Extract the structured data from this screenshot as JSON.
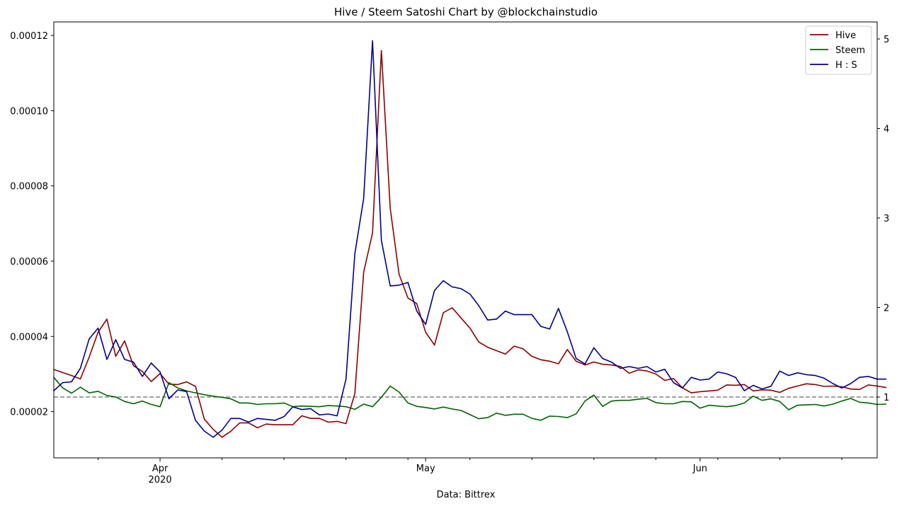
{
  "chart_data": {
    "type": "line",
    "title": "Hive / Steem Satoshi Chart by @blockchainstudio",
    "xlabel": "Data: Bittrex",
    "x_start": "2020-03-20",
    "x_end": "2020-06-21",
    "x_ticks": [
      {
        "date": "2020-04-01",
        "label": "Apr",
        "sublabel": "2020"
      },
      {
        "date": "2020-05-01",
        "label": "May",
        "sublabel": ""
      },
      {
        "date": "2020-06-01",
        "label": "Jun",
        "sublabel": ""
      }
    ],
    "y_left": {
      "lim": [
        7.7e-06,
        0.0001236
      ],
      "ticks": [
        "0.00002",
        "0.00004",
        "0.00006",
        "0.00008",
        "0.00010",
        "0.00012"
      ]
    },
    "y_right": {
      "lim": [
        0.32,
        5.19
      ],
      "ticks": [
        "1",
        "2",
        "3",
        "4",
        "5"
      ]
    },
    "reference_line": {
      "axis": "right",
      "value": 1.0,
      "style": "dashed",
      "color": "#808080"
    },
    "legend": {
      "position": "top-right"
    },
    "series": [
      {
        "name": "Hive",
        "axis": "left",
        "color": "#8b0000",
        "values": [
          3.12e-05,
          3.04e-05,
          2.96e-05,
          2.87e-05,
          3.45e-05,
          4.11e-05,
          4.46e-05,
          3.47e-05,
          3.88e-05,
          3.22e-05,
          3.07e-05,
          2.8e-05,
          3.01e-05,
          2.73e-05,
          2.72e-05,
          2.79e-05,
          2.67e-05,
          1.8e-05,
          1.53e-05,
          1.32e-05,
          1.48e-05,
          1.7e-05,
          1.7e-05,
          1.57e-05,
          1.67e-05,
          1.65e-05,
          1.65e-05,
          1.65e-05,
          1.89e-05,
          1.82e-05,
          1.82e-05,
          1.72e-05,
          1.74e-05,
          1.68e-05,
          2.48e-05,
          5.71e-05,
          6.75e-05,
          0.000116,
          7.4e-05,
          5.65e-05,
          5.02e-05,
          4.87e-05,
          4.11e-05,
          3.77e-05,
          4.63e-05,
          4.76e-05,
          4.49e-05,
          4.22e-05,
          3.85e-05,
          3.71e-05,
          3.62e-05,
          3.53e-05,
          3.74e-05,
          3.67e-05,
          3.47e-05,
          3.38e-05,
          3.34e-05,
          3.27e-05,
          3.65e-05,
          3.34e-05,
          3.24e-05,
          3.32e-05,
          3.26e-05,
          3.24e-05,
          3.2e-05,
          3.02e-05,
          3.11e-05,
          3.08e-05,
          3e-05,
          2.83e-05,
          2.88e-05,
          2.63e-05,
          2.5e-05,
          2.53e-05,
          2.55e-05,
          2.57e-05,
          2.71e-05,
          2.7e-05,
          2.72e-05,
          2.55e-05,
          2.58e-05,
          2.57e-05,
          2.51e-05,
          2.62e-05,
          2.68e-05,
          2.74e-05,
          2.72e-05,
          2.67e-05,
          2.68e-05,
          2.66e-05,
          2.6e-05,
          2.59e-05,
          2.71e-05,
          2.68e-05,
          2.64e-05
        ]
      },
      {
        "name": "Steem",
        "axis": "left",
        "color": "#006400",
        "values": [
          2.91e-05,
          2.63e-05,
          2.49e-05,
          2.65e-05,
          2.5e-05,
          2.54e-05,
          2.43e-05,
          2.39e-05,
          2.27e-05,
          2.21e-05,
          2.28e-05,
          2.19e-05,
          2.13e-05,
          2.77e-05,
          2.63e-05,
          2.55e-05,
          2.5e-05,
          2.45e-05,
          2.41e-05,
          2.38e-05,
          2.34e-05,
          2.23e-05,
          2.23e-05,
          2.19e-05,
          2.21e-05,
          2.21e-05,
          2.23e-05,
          2.13e-05,
          2.15e-05,
          2.14e-05,
          2.13e-05,
          2.16e-05,
          2.15e-05,
          2.13e-05,
          2.06e-05,
          2.2e-05,
          2.13e-05,
          2.38e-05,
          2.68e-05,
          2.52e-05,
          2.23e-05,
          2.14e-05,
          2.11e-05,
          2.07e-05,
          2.12e-05,
          2.07e-05,
          2.03e-05,
          1.92e-05,
          1.81e-05,
          1.84e-05,
          1.96e-05,
          1.9e-05,
          1.93e-05,
          1.93e-05,
          1.82e-05,
          1.77e-05,
          1.88e-05,
          1.87e-05,
          1.84e-05,
          1.94e-05,
          2.28e-05,
          2.44e-05,
          2.14e-05,
          2.28e-05,
          2.3e-05,
          2.3e-05,
          2.33e-05,
          2.35e-05,
          2.24e-05,
          2.21e-05,
          2.21e-05,
          2.27e-05,
          2.26e-05,
          2.09e-05,
          2.17e-05,
          2.15e-05,
          2.13e-05,
          2.16e-05,
          2.23e-05,
          2.41e-05,
          2.3e-05,
          2.34e-05,
          2.27e-05,
          2.05e-05,
          2.17e-05,
          2.18e-05,
          2.19e-05,
          2.15e-05,
          2.2e-05,
          2.28e-05,
          2.35e-05,
          2.25e-05,
          2.23e-05,
          2.19e-05,
          2.2e-05
        ]
      },
      {
        "name": "H : S",
        "axis": "right",
        "color": "#00008b",
        "values": [
          1.07,
          1.16,
          1.17,
          1.32,
          1.65,
          1.77,
          1.42,
          1.64,
          1.42,
          1.39,
          1.23,
          1.38,
          1.28,
          0.98,
          1.08,
          1.06,
          0.74,
          0.62,
          0.55,
          0.63,
          0.76,
          0.76,
          0.72,
          0.76,
          0.75,
          0.74,
          0.78,
          0.89,
          0.86,
          0.87,
          0.8,
          0.81,
          0.79,
          1.2,
          2.6,
          3.22,
          4.98,
          2.75,
          2.24,
          2.25,
          2.28,
          1.96,
          1.81,
          2.19,
          2.3,
          2.23,
          2.21,
          2.15,
          2.02,
          1.86,
          1.87,
          1.96,
          1.92,
          1.92,
          1.92,
          1.79,
          1.76,
          1.99,
          1.73,
          1.43,
          1.37,
          1.55,
          1.43,
          1.39,
          1.32,
          1.34,
          1.32,
          1.34,
          1.28,
          1.31,
          1.16,
          1.1,
          1.22,
          1.19,
          1.2,
          1.28,
          1.26,
          1.22,
          1.07,
          1.13,
          1.09,
          1.12,
          1.29,
          1.24,
          1.27,
          1.25,
          1.24,
          1.21,
          1.15,
          1.1,
          1.15,
          1.22,
          1.23,
          1.2,
          1.2
        ]
      }
    ]
  }
}
